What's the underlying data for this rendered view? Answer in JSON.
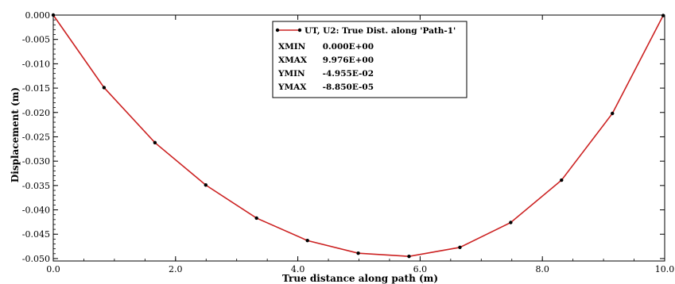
{
  "chart_data": {
    "type": "line",
    "xlabel": "True distance along path (m)",
    "ylabel": "Displacement (m)",
    "xlim": [
      0,
      10
    ],
    "ylim": [
      -0.0505,
      0
    ],
    "x_ticks": [
      0,
      2,
      4,
      6,
      8,
      10
    ],
    "x_tick_labels": [
      "0.0",
      "2.0",
      "4.0",
      "6.0",
      "8.0",
      "10.0"
    ],
    "y_ticks": [
      0,
      -0.005,
      -0.01,
      -0.015,
      -0.02,
      -0.025,
      -0.03,
      -0.035,
      -0.04,
      -0.045,
      -0.05
    ],
    "y_tick_labels": [
      "0.000",
      "-0.005",
      "-0.010",
      "-0.015",
      "-0.020",
      "-0.025",
      "-0.030",
      "-0.035",
      "-0.040",
      "-0.045",
      "-0.050"
    ],
    "grid": false,
    "legend_position": "top-center",
    "line_color": "#cc2222",
    "marker_color": "#000000",
    "series": [
      {
        "name": "UT, U2: True Dist. along 'Path-1'",
        "x": [
          0.0,
          0.831,
          1.663,
          2.494,
          3.325,
          4.157,
          4.988,
          5.819,
          6.651,
          7.482,
          8.313,
          9.145,
          9.976
        ],
        "y": [
          0.0,
          -0.0149,
          -0.0262,
          -0.0349,
          -0.0417,
          -0.0463,
          -0.0489,
          -0.04955,
          -0.0477,
          -0.0426,
          -0.0339,
          -0.0202,
          -8.85e-05
        ]
      }
    ],
    "legend_stats": [
      {
        "label": "XMIN",
        "value": "0.000E+00"
      },
      {
        "label": "XMAX",
        "value": "9.976E+00"
      },
      {
        "label": "YMIN",
        "value": "-4.955E-02"
      },
      {
        "label": "YMAX",
        "value": "-8.850E-05"
      }
    ]
  }
}
